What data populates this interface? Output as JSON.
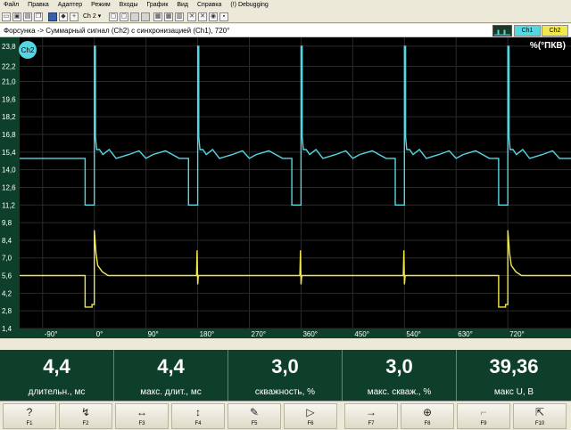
{
  "menu": [
    "Файл",
    "Правка",
    "Адаптер",
    "Режим",
    "Входы",
    "График",
    "Вид",
    "Справка",
    "(!) Debugging"
  ],
  "toolbar": {
    "channel_select": "Ch 2",
    "channel_arrow": "▾"
  },
  "header": {
    "title": "Форсунка -> Суммарный сигнал (Ch2) с синхронизацией (Ch1), 720°",
    "tab_ch1": "Ch1",
    "tab_ch2": "Ch2",
    "units": "%(°ПКВ)"
  },
  "plot": {
    "channel_badge": "Ch2",
    "y_ticks": [
      "23,8",
      "22,2",
      "21,0",
      "19,6",
      "18,2",
      "16,8",
      "15,4",
      "14,0",
      "12,6",
      "11,2",
      "9,8",
      "8,4",
      "7,0",
      "5,6",
      "4,2",
      "2,8",
      "1,4"
    ],
    "x_ticks": [
      "-90°",
      "0°",
      "90°",
      "180°",
      "270°",
      "360°",
      "450°",
      "540°",
      "630°",
      "720°"
    ],
    "colors": {
      "ch2": "#55d7e3",
      "ch1": "#f2e84a",
      "grid": "#2a2a2a",
      "axis_bg": "#0d3f2a"
    }
  },
  "chart_data": {
    "type": "line",
    "title": "Форсунка -> Суммарный сигнал (Ch2) с синхронизацией (Ch1), 720°",
    "xlabel": "",
    "ylabel": "%(°ПКВ)",
    "xlim": [
      -130,
      830
    ],
    "ylim": [
      1.4,
      24.5
    ],
    "grid": true,
    "series": [
      {
        "name": "Ch2",
        "color": "#55d7e3",
        "x": [
          -130,
          -16,
          -16,
          0,
          0,
          2,
          2,
          4,
          9,
          15,
          26,
          38,
          60,
          78,
          90,
          102,
          124,
          148,
          164,
          164,
          180,
          180,
          182,
          182,
          184,
          189,
          195,
          206,
          218,
          240,
          258,
          270,
          282,
          304,
          328,
          344,
          344,
          360,
          360,
          362,
          362,
          364,
          369,
          375,
          386,
          398,
          420,
          438,
          450,
          462,
          484,
          508,
          524,
          524,
          540,
          540,
          542,
          542,
          544,
          549,
          555,
          566,
          578,
          600,
          618,
          630,
          642,
          664,
          688,
          704,
          704,
          720,
          720,
          722,
          722,
          724,
          729,
          735,
          746,
          758,
          780,
          798,
          810,
          830
        ],
        "values": [
          14.9,
          14.9,
          11.2,
          11.2,
          23.8,
          23.8,
          16.6,
          15.6,
          15.6,
          15.2,
          15.6,
          14.9,
          15.2,
          15.5,
          14.9,
          15.2,
          15.5,
          14.9,
          14.9,
          11.2,
          11.2,
          23.8,
          23.8,
          16.6,
          15.6,
          15.6,
          15.2,
          15.6,
          14.9,
          15.2,
          15.5,
          14.9,
          15.2,
          15.5,
          14.9,
          14.9,
          11.2,
          11.2,
          23.8,
          23.8,
          16.6,
          15.6,
          15.6,
          15.2,
          15.6,
          14.9,
          15.2,
          15.5,
          14.9,
          15.2,
          15.5,
          14.9,
          14.9,
          11.2,
          11.2,
          23.8,
          23.8,
          16.6,
          15.6,
          15.6,
          15.2,
          15.6,
          14.9,
          15.2,
          15.5,
          14.9,
          15.2,
          15.5,
          14.9,
          14.9,
          11.2,
          11.2,
          23.8,
          23.8,
          16.6,
          15.6,
          15.6,
          15.2,
          15.6,
          14.9,
          15.2,
          15.5,
          14.9,
          14.9
        ]
      },
      {
        "name": "Ch1",
        "color": "#f2e84a",
        "x": [
          -130,
          -16,
          -16,
          -4,
          -4,
          0,
          0,
          3,
          6,
          14,
          24,
          178,
          179,
          180,
          181,
          182,
          358,
          359,
          360,
          361,
          362,
          538,
          539,
          540,
          541,
          542,
          704,
          704,
          716,
          716,
          720,
          720,
          723,
          726,
          734,
          744,
          830
        ],
        "values": [
          5.6,
          5.6,
          3.1,
          3.1,
          3.3,
          3.3,
          9.2,
          7.4,
          6.4,
          5.9,
          5.6,
          5.6,
          7.6,
          4.9,
          5.5,
          5.6,
          5.6,
          7.6,
          4.9,
          5.5,
          5.6,
          5.6,
          7.6,
          4.9,
          5.5,
          5.6,
          5.6,
          3.1,
          3.1,
          3.3,
          3.3,
          9.2,
          7.4,
          6.4,
          5.9,
          5.6,
          5.6
        ]
      }
    ]
  },
  "stats": [
    {
      "value": "4,4",
      "label": "длительн., мс"
    },
    {
      "value": "4,4",
      "label": "макс. длит., мс"
    },
    {
      "value": "3,0",
      "label": "скважность, %"
    },
    {
      "value": "3,0",
      "label": "макс. скваж., %"
    },
    {
      "value": "39,36",
      "label": "макс U, В"
    }
  ],
  "fkeys": [
    {
      "key": "F1",
      "icon": "question-icon",
      "glyph": "?"
    },
    {
      "key": "F2",
      "icon": "curve-edit-icon",
      "glyph": "↯"
    },
    {
      "key": "F3",
      "icon": "horizontal-zoom-icon",
      "glyph": "↔"
    },
    {
      "key": "F4",
      "icon": "vertical-zoom-icon",
      "glyph": "↕"
    },
    {
      "key": "F5",
      "icon": "brush-icon",
      "glyph": "✎"
    },
    {
      "key": "F6",
      "icon": "play-icon",
      "glyph": "▷"
    },
    {
      "key": "F7",
      "icon": "arrow-right-icon",
      "glyph": "→"
    },
    {
      "key": "F8",
      "icon": "crosshair-icon",
      "glyph": "⊕"
    },
    {
      "key": "F9",
      "icon": "trigger-icon",
      "glyph": "⌐"
    },
    {
      "key": "F10",
      "icon": "exit-icon",
      "glyph": "⇱"
    }
  ]
}
